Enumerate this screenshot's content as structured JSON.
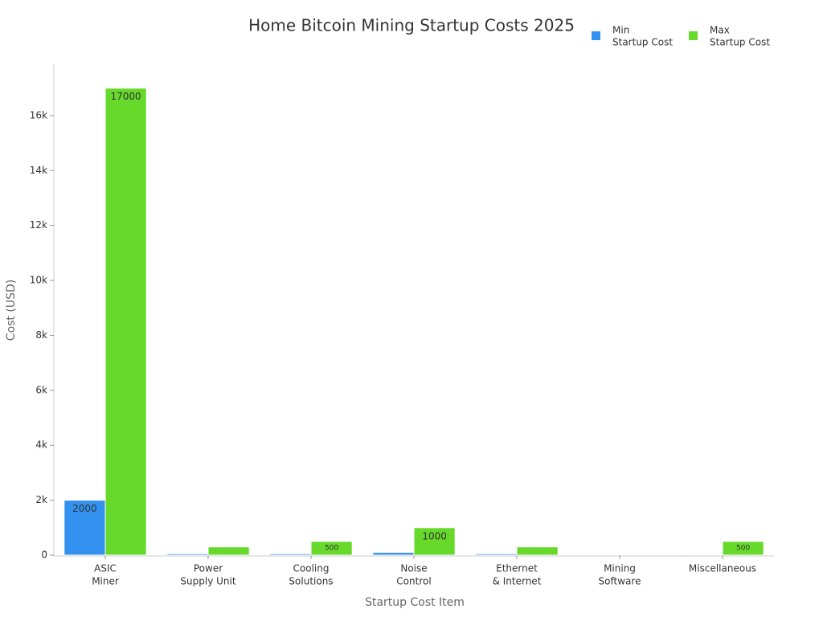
{
  "chart_data": {
    "type": "bar",
    "title": "Home Bitcoin Mining Startup Costs 2025",
    "x_label": "Startup Cost Item",
    "y_label": "Cost (USD)",
    "categories": [
      [
        "ASIC",
        "Miner"
      ],
      [
        "Power",
        "Supply Unit"
      ],
      [
        "Cooling",
        "Solutions"
      ],
      [
        "Noise",
        "Control"
      ],
      [
        "Ethernet",
        "& Internet"
      ],
      [
        "Mining",
        "Software"
      ],
      [
        "Miscellaneous"
      ]
    ],
    "series": [
      {
        "name": [
          "Min",
          "Startup Cost"
        ],
        "color": "#3392f0",
        "values": [
          2000,
          50,
          50,
          100,
          50,
          0,
          30
        ]
      },
      {
        "name": [
          "Max",
          "Startup Cost"
        ],
        "color": "#66d92b",
        "values": [
          17000,
          300,
          500,
          1000,
          300,
          0,
          500
        ]
      }
    ],
    "ylim": [
      0,
      17870
    ],
    "yticks": [
      0,
      {
        "value": 2000,
        "label": "2k"
      },
      {
        "value": 4000,
        "label": "4k"
      },
      {
        "value": 6000,
        "label": "6k"
      },
      {
        "value": 8000,
        "label": "8k"
      },
      {
        "value": 10000,
        "label": "10k"
      },
      {
        "value": 12000,
        "label": "12k"
      },
      {
        "value": 14000,
        "label": "14k"
      },
      {
        "value": 16000,
        "label": "16k"
      }
    ],
    "legend": "top-right",
    "grid": false
  }
}
